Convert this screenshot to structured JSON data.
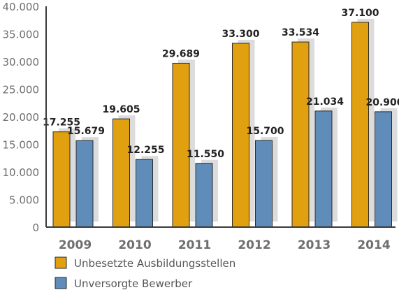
{
  "chart_data": {
    "type": "bar",
    "categories": [
      "2009",
      "2010",
      "2011",
      "2012",
      "2013",
      "2014"
    ],
    "series": [
      {
        "name": "Unbesetzte Ausbildungsstellen",
        "values": [
          17255,
          19605,
          29689,
          33300,
          33534,
          37100
        ],
        "labels": [
          "17.255",
          "19.605",
          "29.689",
          "33.300",
          "33.534",
          "37.100"
        ],
        "color": "#e1a00f"
      },
      {
        "name": "Unversorgte Bewerber",
        "values": [
          15679,
          12255,
          11550,
          15700,
          21034,
          20900
        ],
        "labels": [
          "15.679",
          "12.255",
          "11.550",
          "15.700",
          "21.034",
          "20.900"
        ],
        "color": "#5f8cb8"
      }
    ],
    "ylim": [
      0,
      40000
    ],
    "yticks": [
      0,
      5000,
      10000,
      15000,
      20000,
      25000,
      30000,
      35000,
      40000
    ],
    "ytick_labels": [
      "0",
      "5.000",
      "10.000",
      "15.000",
      "20.000",
      "25.000",
      "30.000",
      "35.000",
      "40.000"
    ],
    "grid": false,
    "legend_position": "bottom-left",
    "title": "",
    "xlabel": "",
    "ylabel": "",
    "colors": {
      "axis": "#3a3a3a",
      "tick_text": "#6f6f6f",
      "shadow": "#dcdcdc",
      "bar_stroke": "#2a2a2a"
    }
  }
}
